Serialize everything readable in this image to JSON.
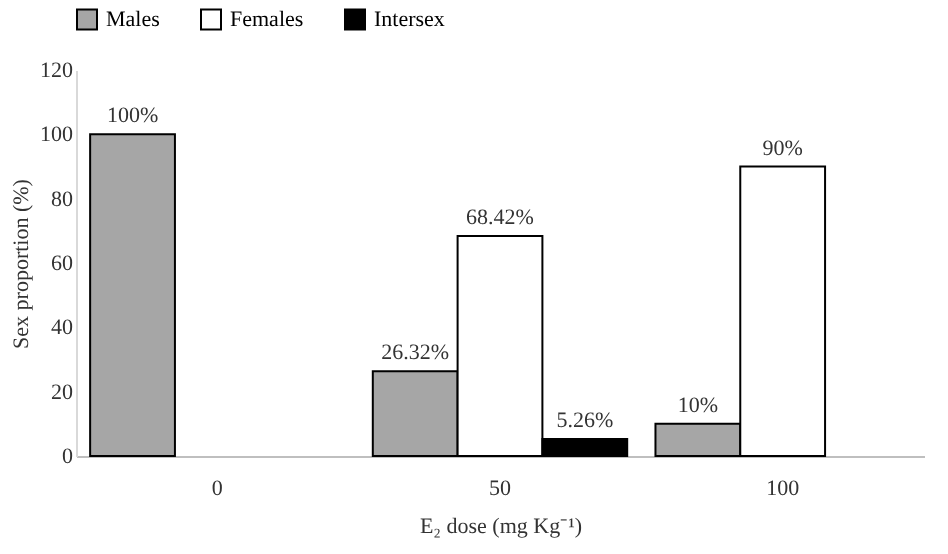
{
  "chart_data": {
    "type": "bar",
    "xlabel": "E₂ dose (mg Kg⁻¹)",
    "ylabel": "Sex proportion (%)",
    "categories": [
      "0",
      "50",
      "100"
    ],
    "series": [
      {
        "name": "Males",
        "color": "#a6a6a6",
        "values": [
          100,
          26.32,
          10
        ],
        "value_labels": [
          "100%",
          "26.32%",
          "10%"
        ]
      },
      {
        "name": "Females",
        "color": "#ffffff",
        "values": [
          null,
          68.42,
          90
        ],
        "value_labels": [
          null,
          "68.42%",
          "90%"
        ]
      },
      {
        "name": "Intersex",
        "color": "#000000",
        "values": [
          null,
          5.26,
          null
        ],
        "value_labels": [
          null,
          "5.26%",
          null
        ]
      }
    ],
    "ylim": [
      0,
      120
    ],
    "yticks": [
      0,
      20,
      40,
      60,
      80,
      100,
      120
    ],
    "grid": false,
    "legend": "top"
  }
}
